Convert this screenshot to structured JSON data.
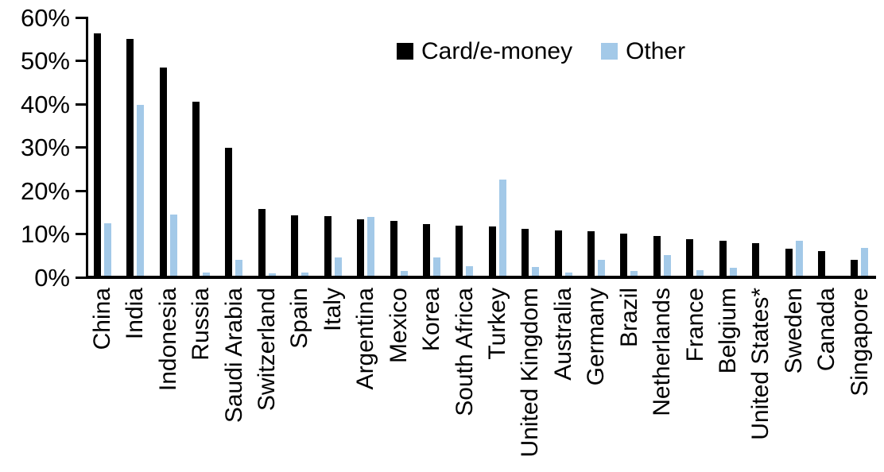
{
  "chart_data": {
    "type": "bar",
    "title": "",
    "xlabel": "",
    "ylabel": "",
    "ylim": [
      0,
      60
    ],
    "grid": false,
    "legend_position": "top-center",
    "yticks": [
      "60%",
      "50%",
      "40%",
      "30%",
      "20%",
      "10%",
      "0%"
    ],
    "categories": [
      "China",
      "India",
      "Indonesia",
      "Russia",
      "Saudi Arabia",
      "Switzerland",
      "Spain",
      "Italy",
      "Argentina",
      "Mexico",
      "Korea",
      "South Africa",
      "Turkey",
      "United Kingdom",
      "Australia",
      "Germany",
      "Brazil",
      "Netherlands",
      "France",
      "Belgium",
      "United States*",
      "Sweden",
      "Canada",
      "Singapore"
    ],
    "series": [
      {
        "name": "Card/e-money",
        "color": "#000000",
        "values": [
          56.5,
          55.2,
          48.5,
          40.6,
          30.0,
          15.8,
          14.3,
          14.2,
          13.5,
          13.0,
          12.4,
          11.9,
          11.7,
          11.2,
          10.9,
          10.7,
          10.1,
          9.5,
          8.8,
          8.4,
          8.0,
          6.7,
          6.1,
          4.0
        ]
      },
      {
        "name": "Other",
        "color": "#A3C9E8",
        "values": [
          12.5,
          39.9,
          14.6,
          1.1,
          4.1,
          1.0,
          1.1,
          4.6,
          13.9,
          1.4,
          4.6,
          2.5,
          22.7,
          2.4,
          1.1,
          4.0,
          1.4,
          5.1,
          1.7,
          2.2,
          0.4,
          8.4,
          0,
          6.9
        ]
      }
    ],
    "axis_color": "#000000",
    "background_color": "#ffffff"
  }
}
